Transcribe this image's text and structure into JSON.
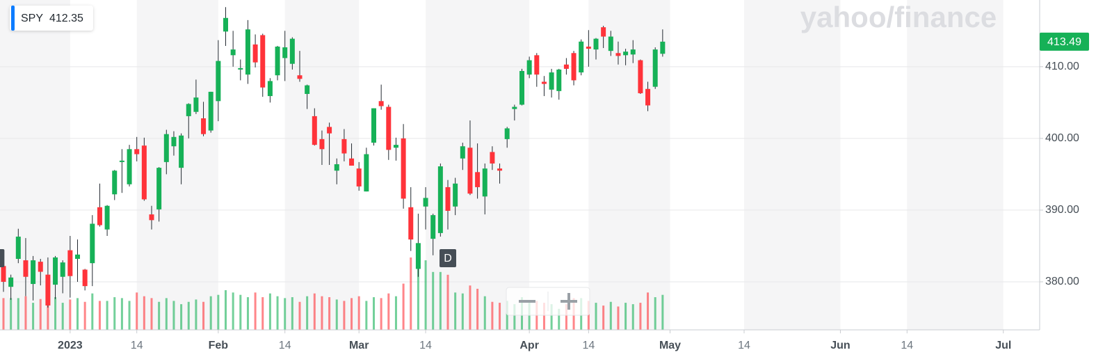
{
  "chart_data": {
    "type": "candlestick",
    "symbol": "SPY",
    "price": 412.35,
    "watermark": "yahoo/finance",
    "last_price": 413.49,
    "colors": {
      "up": "#16b157",
      "down": "#ff333a"
    },
    "ylim": [
      373.3,
      419.3
    ],
    "yticks": [
      {
        "value": 380,
        "label": "380.00"
      },
      {
        "value": 390,
        "label": "390.00"
      },
      {
        "value": 400,
        "label": "400.00"
      },
      {
        "value": 410,
        "label": "410.00"
      }
    ],
    "grid": true,
    "xticks": [
      {
        "value": "2023-01-01",
        "label": "2023"
      },
      {
        "value": "2023-01-14",
        "label": "14"
      },
      {
        "value": "2023-02-01",
        "label": "Feb"
      },
      {
        "value": "2023-02-14",
        "label": "14"
      },
      {
        "value": "2023-03-01",
        "label": "Mar"
      },
      {
        "value": "2023-03-14",
        "label": "14"
      },
      {
        "value": "2023-04-01",
        "label": "Apr"
      },
      {
        "value": "2023-04-14",
        "label": "14"
      },
      {
        "value": "2023-05-01",
        "label": "May"
      },
      {
        "value": "2023-05-14",
        "label": "14"
      },
      {
        "value": "2023-06-01",
        "label": "Jun"
      },
      {
        "value": "2023-06-14",
        "label": "14"
      },
      {
        "value": "2023-07-01",
        "label": "Jul"
      }
    ],
    "events": [
      {
        "date": "2022-12-16",
        "label": "D"
      },
      {
        "date": "2023-03-17",
        "label": "D"
      }
    ],
    "x": [
      "2022-12-19",
      "2022-12-20",
      "2022-12-21",
      "2022-12-22",
      "2022-12-23",
      "2022-12-27",
      "2022-12-28",
      "2022-12-29",
      "2022-12-30",
      "2023-01-03",
      "2023-01-04",
      "2023-01-05",
      "2023-01-06",
      "2023-01-09",
      "2023-01-10",
      "2023-01-11",
      "2023-01-12",
      "2023-01-13",
      "2023-01-17",
      "2023-01-18",
      "2023-01-19",
      "2023-01-20",
      "2023-01-23",
      "2023-01-24",
      "2023-01-25",
      "2023-01-26",
      "2023-01-27",
      "2023-01-30",
      "2023-01-31",
      "2023-02-01",
      "2023-02-02",
      "2023-02-03",
      "2023-02-06",
      "2023-02-07",
      "2023-02-08",
      "2023-02-09",
      "2023-02-10",
      "2023-02-13",
      "2023-02-14",
      "2023-02-15",
      "2023-02-16",
      "2023-02-17",
      "2023-02-21",
      "2023-02-22",
      "2023-02-23",
      "2023-02-24",
      "2023-02-27",
      "2023-02-28",
      "2023-03-01",
      "2023-03-02",
      "2023-03-03",
      "2023-03-06",
      "2023-03-07",
      "2023-03-08",
      "2023-03-09",
      "2023-03-10",
      "2023-03-13",
      "2023-03-14",
      "2023-03-15",
      "2023-03-16",
      "2023-03-17",
      "2023-03-20",
      "2023-03-21",
      "2023-03-22",
      "2023-03-23",
      "2023-03-24",
      "2023-03-27",
      "2023-03-28",
      "2023-03-29",
      "2023-03-30",
      "2023-03-31",
      "2023-04-03",
      "2023-04-04",
      "2023-04-05",
      "2023-04-06",
      "2023-04-10",
      "2023-04-11",
      "2023-04-12",
      "2023-04-13",
      "2023-04-14",
      "2023-04-17",
      "2023-04-18",
      "2023-04-19",
      "2023-04-20",
      "2023-04-21",
      "2023-04-24",
      "2023-04-25",
      "2023-04-26",
      "2023-04-27",
      "2023-04-28"
    ],
    "open": [
      382.2,
      379.3,
      383.2,
      383.0,
      379.7,
      382.8,
      381.0,
      379.6,
      380.7,
      384.4,
      383.2,
      381.7,
      382.6,
      390.4,
      387.3,
      392.2,
      396.7,
      393.6,
      398.5,
      399.0,
      389.4,
      390.1,
      396.7,
      398.9,
      395.9,
      403.1,
      403.7,
      402.8,
      401.1,
      405.2,
      414.9,
      411.6,
      409.6,
      408.9,
      413.1,
      414.4,
      405.9,
      408.8,
      411.2,
      410.4,
      408.8,
      406.2,
      403.1,
      399.9,
      401.6,
      395.5,
      399.9,
      397.2,
      395.8,
      392.6,
      399.4,
      405.2,
      404.4,
      398.7,
      400.0,
      390.4,
      381.8,
      390.5,
      386.0,
      386.8,
      393.2,
      390.5,
      397.2,
      398.7,
      395.3,
      391.9,
      398.1,
      395.8,
      399.9,
      404.1,
      404.7,
      408.9,
      411.6,
      407.9,
      406.8,
      406.6,
      410.3,
      411.9,
      409.2,
      412.8,
      412.4,
      415.5,
      412.2,
      411.9,
      411.6,
      411.7,
      410.9,
      406.9,
      407.2,
      411.8
    ],
    "high": [
      382.6,
      381.0,
      387.4,
      386.1,
      383.6,
      383.2,
      383.4,
      383.6,
      383.0,
      386.4,
      385.9,
      381.8,
      389.3,
      393.7,
      390.7,
      395.6,
      398.5,
      399.1,
      400.2,
      400.1,
      390.6,
      396.0,
      401.2,
      401.0,
      400.7,
      404.9,
      408.2,
      405.1,
      406.5,
      413.7,
      418.3,
      415.0,
      411.0,
      416.5,
      414.5,
      414.6,
      408.4,
      412.9,
      415.0,
      414.1,
      412.2,
      407.5,
      404.2,
      401.1,
      402.2,
      397.2,
      401.3,
      399.3,
      396.7,
      398.7,
      404.2,
      407.5,
      404.7,
      400.1,
      402.0,
      393.2,
      389.5,
      393.2,
      389.5,
      396.5,
      394.2,
      394.5,
      399.4,
      402.5,
      399.3,
      396.5,
      398.9,
      396.5,
      401.6,
      404.7,
      409.7,
      411.4,
      411.9,
      408.7,
      409.7,
      409.7,
      411.2,
      412.2,
      413.8,
      415.1,
      414.0,
      415.7,
      415.0,
      413.5,
      412.5,
      413.7,
      411.0,
      407.9,
      412.7,
      415.2
    ],
    "low": [
      378.6,
      377.5,
      382.6,
      378.0,
      377.4,
      379.5,
      376.4,
      377.6,
      378.4,
      377.8,
      380.0,
      378.8,
      379.4,
      387.7,
      386.4,
      391.4,
      392.4,
      393.3,
      396.8,
      391.3,
      387.3,
      388.4,
      395.0,
      397.6,
      393.6,
      400.0,
      403.4,
      400.3,
      400.8,
      402.4,
      412.9,
      410.0,
      408.1,
      407.6,
      409.9,
      405.8,
      405.0,
      408.1,
      408.0,
      409.6,
      407.9,
      404.1,
      399.0,
      396.3,
      396.3,
      393.6,
      396.8,
      396.2,
      392.7,
      392.6,
      399.0,
      404.0,
      397.0,
      396.9,
      390.2,
      384.3,
      380.7,
      387.3,
      383.7,
      386.3,
      387.3,
      389.3,
      395.6,
      392.1,
      391.6,
      389.4,
      395.6,
      393.7,
      398.7,
      402.5,
      404.6,
      408.4,
      407.2,
      405.9,
      405.7,
      405.4,
      408.9,
      407.4,
      408.8,
      410.0,
      411.0,
      412.6,
      411.5,
      410.3,
      410.2,
      410.5,
      406.2,
      403.8,
      406.9,
      411.4
    ],
    "close": [
      380.0,
      380.6,
      386.3,
      380.7,
      383.0,
      381.4,
      376.7,
      383.4,
      382.7,
      380.8,
      383.8,
      379.4,
      388.1,
      387.9,
      390.6,
      395.5,
      396.9,
      398.5,
      397.8,
      391.5,
      388.6,
      395.9,
      400.6,
      400.2,
      400.4,
      404.8,
      405.7,
      400.6,
      406.5,
      410.8,
      416.8,
      412.4,
      409.8,
      415.2,
      410.6,
      407.1,
      408.0,
      412.8,
      412.7,
      413.9,
      408.3,
      407.4,
      399.1,
      398.5,
      400.7,
      396.4,
      397.9,
      396.2,
      393.3,
      397.8,
      404.2,
      404.5,
      398.4,
      399.1,
      391.6,
      385.9,
      385.4,
      391.7,
      389.3,
      396.1,
      389.9,
      393.7,
      398.9,
      392.3,
      393.2,
      395.8,
      396.5,
      395.5,
      401.4,
      404.4,
      409.4,
      410.9,
      408.9,
      407.6,
      409.2,
      409.6,
      409.7,
      408.1,
      413.5,
      412.5,
      413.9,
      414.2,
      414.2,
      411.5,
      412.1,
      412.4,
      406.3,
      404.6,
      412.4,
      413.49
    ],
    "volume": [
      68,
      68,
      68,
      72,
      58,
      66,
      58,
      70,
      58,
      65,
      68,
      60,
      78,
      62,
      62,
      70,
      68,
      62,
      80,
      72,
      68,
      60,
      68,
      62,
      55,
      60,
      65,
      60,
      72,
      75,
      85,
      80,
      75,
      70,
      80,
      70,
      78,
      72,
      68,
      70,
      60,
      72,
      78,
      72,
      70,
      65,
      62,
      68,
      72,
      62,
      70,
      68,
      78,
      72,
      99,
      155,
      136,
      149,
      124,
      124,
      118,
      80,
      78,
      95,
      88,
      72,
      60,
      58,
      62,
      55,
      70,
      60,
      62,
      58,
      55,
      45,
      55,
      68,
      68,
      62,
      58,
      52,
      60,
      50,
      58,
      55,
      58,
      80,
      70,
      75
    ]
  }
}
